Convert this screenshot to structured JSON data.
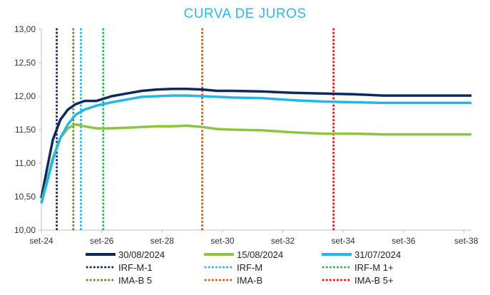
{
  "chart_data": {
    "type": "line",
    "title": "CURVA DE JUROS",
    "xlabel": "",
    "ylabel": "",
    "ylim": [
      10.0,
      13.0
    ],
    "y_ticks": [
      "10,00",
      "10,50",
      "11,00",
      "11,50",
      "12,00",
      "12,50",
      "13,00"
    ],
    "x_ticks": [
      "set-24",
      "set-26",
      "set-28",
      "set-30",
      "set-32",
      "set-34",
      "set-36",
      "set-38"
    ],
    "xlim": [
      2024.67,
      2038.92
    ],
    "grid": false,
    "series": [
      {
        "name": "30/08/2024",
        "color": "#0d2a5c",
        "style": "solid",
        "x": [
          2024.67,
          2024.85,
          2025.05,
          2025.3,
          2025.55,
          2025.8,
          2026.1,
          2026.5,
          2027.0,
          2027.5,
          2028.0,
          2028.5,
          2029.0,
          2029.5,
          2030.0,
          2030.5,
          2031.0,
          2032.0,
          2033.0,
          2034.0,
          2035.0,
          2036.0,
          2037.0,
          2038.0,
          2038.92
        ],
        "y": [
          10.48,
          10.9,
          11.35,
          11.65,
          11.8,
          11.88,
          11.93,
          11.93,
          12.0,
          12.04,
          12.08,
          12.1,
          12.11,
          12.11,
          12.1,
          12.08,
          12.08,
          12.07,
          12.05,
          12.04,
          12.03,
          12.01,
          12.01,
          12.01,
          12.01
        ]
      },
      {
        "name": "15/08/2024",
        "color": "#8cc63f",
        "style": "solid",
        "x": [
          2024.67,
          2024.85,
          2025.05,
          2025.3,
          2025.55,
          2025.8,
          2026.1,
          2026.5,
          2027.0,
          2027.5,
          2028.0,
          2028.5,
          2029.0,
          2029.5,
          2030.0,
          2030.5,
          2031.0,
          2032.0,
          2033.0,
          2034.0,
          2035.0,
          2036.0,
          2037.0,
          2038.0,
          2038.92
        ],
        "y": [
          10.42,
          10.72,
          11.08,
          11.38,
          11.52,
          11.58,
          11.55,
          11.52,
          11.52,
          11.53,
          11.54,
          11.55,
          11.55,
          11.56,
          11.54,
          11.51,
          11.5,
          11.49,
          11.46,
          11.44,
          11.44,
          11.43,
          11.43,
          11.43,
          11.43
        ]
      },
      {
        "name": "31/07/2024",
        "color": "#26b5e8",
        "style": "solid",
        "x": [
          2024.67,
          2024.85,
          2025.05,
          2025.3,
          2025.55,
          2025.8,
          2026.1,
          2026.5,
          2027.0,
          2027.5,
          2028.0,
          2028.5,
          2029.0,
          2029.5,
          2030.0,
          2030.5,
          2031.0,
          2032.0,
          2033.0,
          2034.0,
          2035.0,
          2036.0,
          2037.0,
          2038.0,
          2038.92
        ],
        "y": [
          10.4,
          10.7,
          11.05,
          11.38,
          11.58,
          11.72,
          11.8,
          11.86,
          11.91,
          11.95,
          11.99,
          12.0,
          12.01,
          12.01,
          12.0,
          11.99,
          11.98,
          11.97,
          11.94,
          11.92,
          11.91,
          11.9,
          11.9,
          11.9,
          11.9
        ]
      }
    ],
    "vlines": [
      {
        "name": "IRF-M-1",
        "color": "#0d2a5c",
        "x": 2025.18
      },
      {
        "name": "IRF-M",
        "color": "#26b5e8",
        "x": 2025.98
      },
      {
        "name": "IRF-M 1+",
        "color": "#1db954",
        "x": 2026.72
      },
      {
        "name": "IMA-B 5",
        "color": "#5a8a2a",
        "x": 2025.73
      },
      {
        "name": "IMA-B",
        "color": "#c0621b",
        "x": 2030.0
      },
      {
        "name": "IMA-B 5+",
        "color": "#e3141b",
        "x": 2034.35
      }
    ],
    "legend": {
      "placement": "bottom",
      "solid_row": [
        "30/08/2024",
        "15/08/2024",
        "31/07/2024"
      ],
      "dotted_rows": [
        [
          "IRF-M-1",
          "IRF-M",
          "IRF-M 1+"
        ],
        [
          "IMA-B 5",
          "IMA-B",
          "IMA-B 5+"
        ]
      ]
    }
  }
}
